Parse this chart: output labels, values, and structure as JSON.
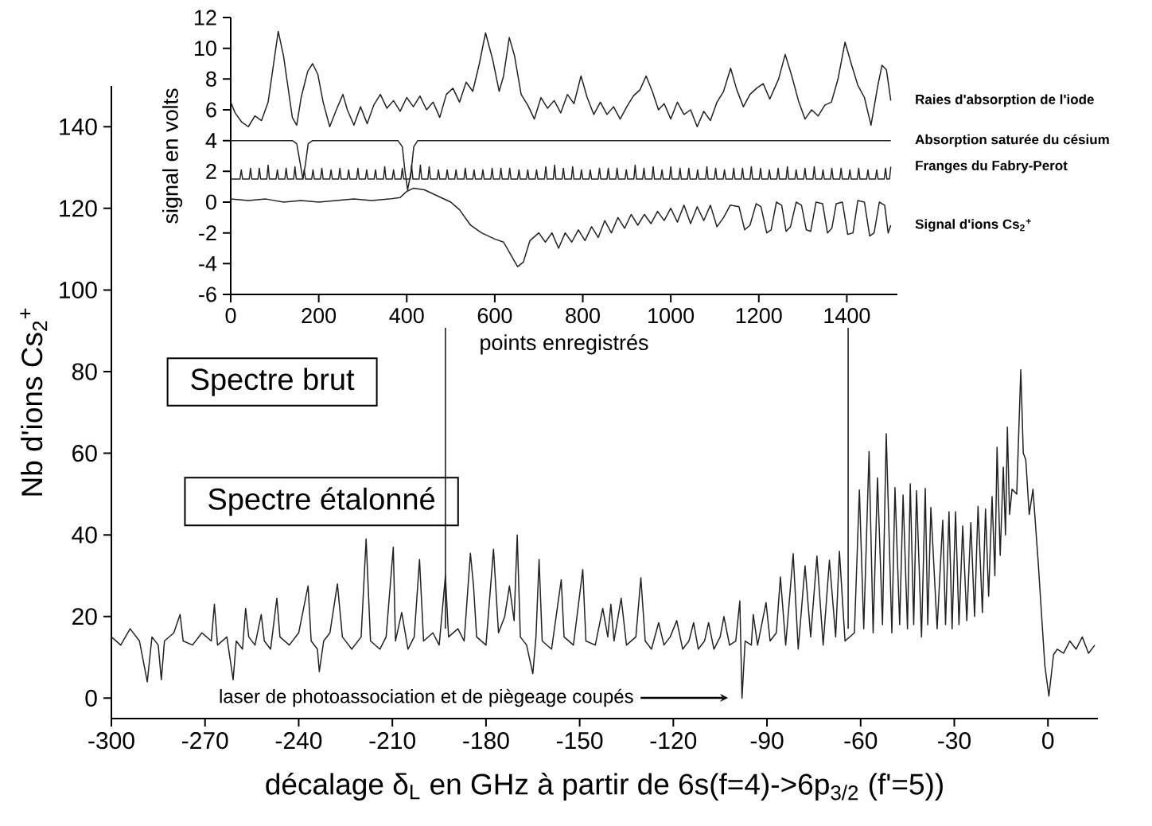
{
  "chart_data": [
    {
      "type": "line",
      "xlabel": "décalage δ$_{L}$ en GHz à partir de 6s(f=4)->6p$_{3/2}$ (f'=5))",
      "ylabel": "Nb d'ions Cs$_{2}$$^{+}$",
      "xlim": [
        -300,
        16
      ],
      "ylim": [
        -5,
        150
      ],
      "xticks": [
        -300,
        -270,
        -240,
        -210,
        -180,
        -150,
        -120,
        -90,
        -60,
        -30,
        0
      ],
      "yticks": [
        0,
        20,
        40,
        60,
        80,
        100,
        120,
        140
      ],
      "annotations": [
        "Spectre brut",
        "Spectre étalonné",
        "laser de photoassociation et de piègeage coupés"
      ],
      "ref_lines": [
        {
          "axis": "x",
          "value": -193,
          "color": "#222222"
        },
        {
          "axis": "x",
          "value": -64,
          "color": "#222222"
        }
      ],
      "series": [
        {
          "color": "#222222",
          "x": [
            -300,
            -297,
            -294,
            -291,
            -288.5,
            -287,
            -285,
            -284,
            -283,
            -280,
            -278,
            -277,
            -274,
            -271,
            -268,
            -267,
            -266,
            -263,
            -261,
            -260,
            -258,
            -257,
            -256,
            -254,
            -252,
            -251,
            -249,
            -247,
            -246,
            -243,
            -240,
            -237,
            -236,
            -234,
            -233.4,
            -232,
            -230,
            -227.6,
            -226,
            -223,
            -220,
            -218.4,
            -217,
            -214,
            -212,
            -209.7,
            -209,
            -207,
            -205,
            -203,
            -201.3,
            -200,
            -197,
            -195,
            -193,
            -192,
            -189,
            -187,
            -185,
            -184,
            -183,
            -180,
            -177.6,
            -176,
            -174,
            -172.5,
            -171,
            -170,
            -169,
            -167,
            -165,
            -164,
            -163,
            -162,
            -159,
            -155.9,
            -155,
            -152,
            -149,
            -148,
            -145,
            -142.6,
            -141,
            -140,
            -139,
            -136.7,
            -135,
            -132,
            -130.4,
            -129,
            -127,
            -124.7,
            -123,
            -121,
            -118.9,
            -117,
            -115,
            -113.5,
            -112,
            -110,
            -108.7,
            -107,
            -105,
            -103.8,
            -102,
            -100,
            -98.7,
            -98,
            -97,
            -95,
            -94.4,
            -93,
            -90.3,
            -89,
            -87,
            -85.7,
            -84,
            -81.6,
            -80,
            -77.8,
            -76,
            -74,
            -72,
            -70,
            -68,
            -66.8,
            -65,
            -62,
            -60.4,
            -59,
            -57.3,
            -56,
            -54.6,
            -53,
            -51.8,
            -50,
            -49,
            -47.5,
            -46.4,
            -45,
            -44.1,
            -43,
            -42.1,
            -40.5,
            -39.3,
            -38.5,
            -37.5,
            -35.5,
            -33.7,
            -32.8,
            -31.7,
            -30.7,
            -29.6,
            -28.5,
            -27.3,
            -26,
            -24.7,
            -23.5,
            -22.4,
            -21,
            -20,
            -19,
            -17.9,
            -17,
            -16.3,
            -15.3,
            -14.3,
            -13.6,
            -13,
            -12.3,
            -11.5,
            -10,
            -8.7,
            -7.9,
            -7.1,
            -6,
            -4.8,
            -3.1,
            -1,
            0.3,
            1.8,
            3,
            5,
            7,
            9,
            11,
            13,
            15
          ],
          "values": [
            15,
            13,
            17,
            14,
            4,
            15,
            13,
            4.5,
            14,
            16,
            20.5,
            14,
            13,
            16,
            14,
            23,
            13,
            15,
            4.5,
            14,
            12,
            22,
            15,
            13,
            20.5,
            14,
            12,
            24.5,
            15,
            13,
            16,
            27.5,
            14,
            12,
            6.5,
            14,
            16,
            28,
            15,
            12,
            15,
            39,
            14,
            12,
            15,
            37,
            14,
            21,
            12,
            15,
            34,
            14,
            16,
            13,
            30,
            15,
            17,
            14,
            35.5,
            27.5,
            15,
            13,
            36.5,
            16,
            20,
            27.5,
            19,
            40,
            15,
            13,
            6,
            15,
            34,
            14,
            12,
            29,
            15,
            13,
            31.5,
            14,
            13,
            22,
            15,
            23,
            14,
            24.5,
            13,
            15,
            29.5,
            14,
            12,
            18.5,
            13,
            15,
            19,
            12,
            14,
            18.5,
            12,
            14,
            18.5,
            12,
            15,
            20,
            13,
            14,
            23.8,
            0,
            14,
            13,
            20.5,
            13,
            23.4,
            14,
            16,
            29.7,
            13,
            35.4,
            12,
            32.4,
            15,
            34.8,
            13,
            33.8,
            15,
            36,
            14,
            16,
            51,
            17,
            60.4,
            16,
            54,
            18,
            64.8,
            16,
            51.6,
            18,
            49.8,
            17,
            52.5,
            18,
            50.8,
            15,
            51.4,
            18,
            46.7,
            17,
            43.6,
            18,
            45.7,
            17,
            45.7,
            18,
            42.2,
            19,
            43,
            20,
            47,
            21,
            46.3,
            25,
            49.4,
            30,
            61.5,
            35,
            56.6,
            40,
            66.4,
            45,
            51.2,
            50,
            80.5,
            60,
            58.4,
            45,
            51.2,
            33,
            8,
            0.5,
            10.7,
            12,
            11,
            14,
            12,
            15,
            11,
            13
          ]
        }
      ]
    },
    {
      "type": "line",
      "xlabel": "points enregistrés",
      "ylabel": "signal en volts",
      "xlim": [
        0,
        1515
      ],
      "ylim": [
        -6,
        12
      ],
      "xticks": [
        0,
        200,
        400,
        600,
        800,
        1000,
        1200,
        1400
      ],
      "yticks": [
        -6,
        -4,
        -2,
        0,
        2,
        4,
        6,
        8,
        10,
        12
      ],
      "series": [
        {
          "name": "Raies d'absorption de l'iode",
          "color": "#222222",
          "x": [
            0,
            10,
            25,
            40,
            55,
            70,
            85,
            95,
            108,
            120,
            130,
            140,
            150,
            160,
            175,
            186,
            198,
            210,
            225,
            240,
            255,
            265,
            280,
            295,
            310,
            325,
            340,
            355,
            370,
            385,
            400,
            415,
            430,
            445,
            460,
            475,
            490,
            505,
            520,
            535,
            550,
            565,
            579,
            595,
            610,
            620,
            633,
            645,
            660,
            675,
            690,
            705,
            720,
            735,
            750,
            765,
            780,
            796,
            810,
            825,
            840,
            855,
            870,
            885,
            900,
            915,
            930,
            944,
            958,
            972,
            985,
            1000,
            1015,
            1030,
            1045,
            1060,
            1075,
            1090,
            1105,
            1120,
            1136,
            1150,
            1165,
            1180,
            1195,
            1210,
            1225,
            1245,
            1260,
            1275,
            1290,
            1305,
            1320,
            1335,
            1350,
            1365,
            1380,
            1396,
            1410,
            1425,
            1440,
            1455,
            1470,
            1480,
            1490,
            1500
          ],
          "values": [
            6.5,
            5.8,
            5.2,
            4.9,
            5.6,
            5.3,
            6.5,
            8.5,
            11.1,
            9.5,
            7.5,
            5.5,
            5.0,
            6.8,
            8.5,
            9.0,
            8.3,
            6.5,
            4.9,
            6.0,
            7.0,
            6.0,
            5.0,
            6.2,
            5.1,
            6.3,
            7.0,
            6.1,
            6.6,
            5.9,
            6.8,
            6.2,
            6.9,
            6.0,
            6.5,
            5.5,
            7.0,
            7.4,
            6.5,
            7.8,
            7.2,
            9.0,
            11.0,
            9.3,
            7.2,
            8.2,
            10.7,
            9.5,
            7.0,
            6.3,
            5.4,
            6.8,
            6.1,
            6.6,
            5.8,
            7.0,
            6.4,
            8.2,
            6.8,
            5.7,
            6.5,
            5.7,
            6.2,
            5.4,
            6.2,
            6.9,
            7.3,
            8.2,
            7.2,
            6.0,
            6.4,
            5.4,
            6.5,
            5.7,
            6.0,
            4.9,
            5.9,
            5.3,
            6.5,
            7.2,
            8.7,
            7.3,
            6.2,
            7.0,
            7.4,
            7.7,
            6.7,
            8.0,
            9.6,
            8.2,
            6.6,
            5.4,
            6.0,
            5.6,
            6.3,
            6.5,
            8.0,
            10.4,
            9.0,
            7.6,
            6.8,
            5.0,
            7.5,
            8.9,
            8.6,
            6.6
          ]
        },
        {
          "name": "Absorption saturée du césium",
          "color": "#222222",
          "x": [
            0,
            140,
            150,
            158,
            164,
            170,
            176,
            186,
            380,
            390,
            396,
            402,
            410,
            416,
            425,
            1500
          ],
          "values": [
            4,
            4,
            3.8,
            2.5,
            1.5,
            2.5,
            3.8,
            4,
            4,
            3.6,
            2,
            0.8,
            2,
            3.6,
            4,
            4
          ]
        },
        {
          "name": "Franges du Fabry-Perot",
          "color": "#222222",
          "x": [
            0,
            21,
            24,
            27,
            42,
            45,
            48,
            62,
            65,
            68,
            82,
            85,
            88,
            103,
            106,
            109,
            123,
            126,
            129,
            143,
            146,
            149,
            164,
            167,
            170,
            184,
            187,
            190,
            204,
            207,
            210,
            225,
            228,
            231,
            245,
            248,
            251,
            265,
            268,
            271,
            286,
            289,
            292,
            306,
            309,
            312,
            326,
            329,
            332,
            347,
            350,
            353,
            367,
            370,
            373,
            387,
            390,
            393,
            408,
            411,
            414,
            428,
            431,
            434,
            448,
            451,
            454,
            469,
            472,
            475,
            489,
            492,
            495,
            509,
            512,
            515,
            530,
            533,
            536,
            550,
            553,
            556,
            570,
            573,
            576,
            591,
            594,
            597,
            611,
            614,
            617,
            631,
            634,
            637,
            652,
            655,
            658,
            672,
            675,
            678,
            692,
            695,
            698,
            713,
            716,
            719,
            733,
            736,
            739,
            753,
            756,
            759,
            774,
            777,
            780,
            794,
            797,
            800,
            814,
            817,
            820,
            835,
            838,
            841,
            855,
            858,
            861,
            875,
            878,
            881,
            896,
            899,
            902,
            916,
            919,
            922,
            936,
            939,
            942,
            957,
            960,
            963,
            977,
            980,
            983,
            997,
            1000,
            1003,
            1018,
            1021,
            1024,
            1038,
            1041,
            1044,
            1058,
            1061,
            1064,
            1079,
            1082,
            1085,
            1099,
            1102,
            1105,
            1119,
            1122,
            1125,
            1140,
            1143,
            1146,
            1160,
            1163,
            1166,
            1180,
            1183,
            1186,
            1201,
            1204,
            1207,
            1221,
            1224,
            1227,
            1241,
            1244,
            1247,
            1262,
            1265,
            1268,
            1282,
            1285,
            1288,
            1302,
            1305,
            1308,
            1323,
            1326,
            1329,
            1343,
            1346,
            1349,
            1363,
            1366,
            1369,
            1384,
            1387,
            1390,
            1404,
            1407,
            1410,
            1424,
            1427,
            1430,
            1445,
            1448,
            1451,
            1465,
            1468,
            1471,
            1485,
            1488,
            1491,
            1497,
            1500
          ],
          "values": [
            1.5,
            1.5,
            2.1,
            1.5,
            1.5,
            2.2,
            1.5,
            1.5,
            2.2,
            1.5,
            1.5,
            2.4,
            1.5,
            1.5,
            2.1,
            1.5,
            1.5,
            2.2,
            1.5,
            1.5,
            2.3,
            1.5,
            1.5,
            2.1,
            1.5,
            1.5,
            2.1,
            1.5,
            1.5,
            2.2,
            1.5,
            1.5,
            2.1,
            1.5,
            1.5,
            2.2,
            1.5,
            1.5,
            2.1,
            1.5,
            1.5,
            2.2,
            1.5,
            1.5,
            2.1,
            1.5,
            1.5,
            2.1,
            1.5,
            1.5,
            2.3,
            1.5,
            1.5,
            2.1,
            1.5,
            1.5,
            2.2,
            1.5,
            1.5,
            2.4,
            1.5,
            1.5,
            2.4,
            1.5,
            1.5,
            2.3,
            1.5,
            1.5,
            2.1,
            1.5,
            1.5,
            2.1,
            1.5,
            1.5,
            2.1,
            1.5,
            1.5,
            2.2,
            1.5,
            1.5,
            2.1,
            1.5,
            1.5,
            2.1,
            1.5,
            1.5,
            2.2,
            1.5,
            1.5,
            2.2,
            1.5,
            1.5,
            2.2,
            1.5,
            1.5,
            2.1,
            1.5,
            1.5,
            2.1,
            1.5,
            1.5,
            2.1,
            1.5,
            1.5,
            2.3,
            1.5,
            1.5,
            2.4,
            1.5,
            1.5,
            2.2,
            1.5,
            1.5,
            2.3,
            1.5,
            1.5,
            2.1,
            1.5,
            1.5,
            2.1,
            1.5,
            1.5,
            2.2,
            1.5,
            1.5,
            2.2,
            1.5,
            1.5,
            2.2,
            1.5,
            1.5,
            2.1,
            1.5,
            1.5,
            2.4,
            1.5,
            1.5,
            2.2,
            1.5,
            1.5,
            2.3,
            1.5,
            1.5,
            2.1,
            1.5,
            1.5,
            2.3,
            1.5,
            1.5,
            2.2,
            1.5,
            1.5,
            2.2,
            1.5,
            1.5,
            2.1,
            1.5,
            1.5,
            2.3,
            1.5,
            1.5,
            2.2,
            1.5,
            1.5,
            2.1,
            1.5,
            1.5,
            2.2,
            1.5,
            1.5,
            2.2,
            1.5,
            1.5,
            2.3,
            1.5,
            1.5,
            2.2,
            1.5,
            1.5,
            2.1,
            1.5,
            1.5,
            2.2,
            1.5,
            1.5,
            2.3,
            1.5,
            1.5,
            2.1,
            1.5,
            1.5,
            2.2,
            1.5,
            1.5,
            2.3,
            1.5,
            1.5,
            2.1,
            1.5,
            1.5,
            2.2,
            1.5,
            1.5,
            2.2,
            1.5,
            1.5,
            2.1,
            1.5,
            1.5,
            2.2,
            1.5,
            1.5,
            2.1,
            1.5,
            1.5,
            2.1,
            1.5,
            1.5,
            2.2,
            1.5,
            1.5,
            2.3
          ]
        },
        {
          "name": "Signal d'ions Cs$_{2}$$^{+}$",
          "color": "#222222",
          "x": [
            0,
            40,
            80,
            120,
            160,
            200,
            240,
            280,
            320,
            360,
            385,
            400,
            415,
            440,
            470,
            500,
            520,
            545,
            570,
            600,
            620,
            640,
            652,
            665,
            680,
            700,
            715,
            730,
            745,
            760,
            775,
            790,
            805,
            820,
            835,
            850,
            865,
            880,
            895,
            910,
            925,
            940,
            955,
            970,
            985,
            1000,
            1015,
            1030,
            1045,
            1060,
            1075,
            1090,
            1105,
            1120,
            1135,
            1155,
            1168,
            1180,
            1194,
            1205,
            1218,
            1228,
            1240,
            1252,
            1262,
            1272,
            1285,
            1297,
            1308,
            1318,
            1330,
            1345,
            1356,
            1366,
            1376,
            1390,
            1402,
            1414,
            1425,
            1440,
            1452,
            1462,
            1474,
            1486,
            1494,
            1500
          ],
          "values": [
            0.2,
            0.1,
            0.2,
            0.0,
            0.1,
            0.0,
            0.1,
            0.2,
            0.1,
            0.2,
            0.3,
            0.7,
            0.9,
            0.8,
            0.4,
            0.0,
            -0.5,
            -1.5,
            -2.0,
            -2.4,
            -2.6,
            -3.6,
            -4.2,
            -3.9,
            -2.5,
            -2.0,
            -2.6,
            -2.0,
            -3.0,
            -2.0,
            -2.6,
            -1.8,
            -2.5,
            -1.6,
            -2.3,
            -1.2,
            -2.0,
            -1.0,
            -1.7,
            -0.8,
            -1.5,
            -0.8,
            -1.4,
            -0.6,
            -1.2,
            -0.4,
            -1.3,
            -0.2,
            -1.4,
            -0.3,
            -1.2,
            -0.2,
            -1.6,
            -1.0,
            -0.2,
            -0.3,
            -1.8,
            -1.5,
            -0.1,
            -0.3,
            -2.0,
            -1.8,
            0.0,
            -0.2,
            -1.9,
            -1.6,
            0.0,
            -0.2,
            -1.8,
            -1.9,
            0.0,
            -0.1,
            -2.0,
            -1.7,
            -0.1,
            0.0,
            -2.1,
            -2.0,
            0.1,
            0.0,
            -2.2,
            -2.0,
            0.0,
            -0.2,
            -2.0,
            -1.5
          ]
        }
      ]
    }
  ]
}
